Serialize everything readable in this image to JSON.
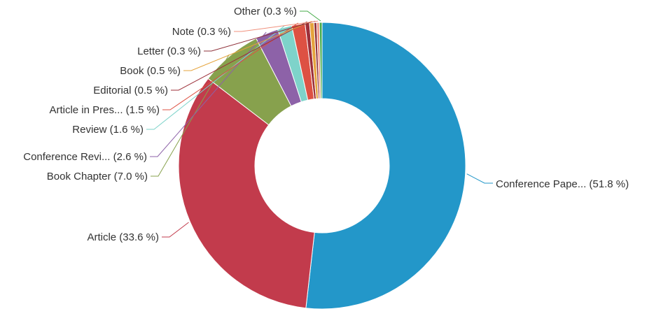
{
  "page": {
    "background": "#ffffff",
    "label_text_color": "#333333"
  },
  "chart_data": {
    "type": "pie",
    "subtype": "donut",
    "title": "",
    "xlabel": "",
    "ylabel": "",
    "legend_position": "none",
    "labels_style": "outside with colored leader lines",
    "start_angle_deg": -90,
    "direction": "clockwise",
    "inner_radius_ratio": 0.47,
    "total": 100.0,
    "categories": [
      "Conference Paper",
      "Article",
      "Book Chapter",
      "Conference Review",
      "Review",
      "Article in Press",
      "Editorial",
      "Book",
      "Letter",
      "Note",
      "Other"
    ],
    "values": [
      51.8,
      33.6,
      7.0,
      2.6,
      1.6,
      1.5,
      0.5,
      0.5,
      0.3,
      0.3,
      0.3
    ],
    "slices": [
      {
        "label": "Conference Paper",
        "display": "Conference Pape... (51.8 %)",
        "value": 51.8,
        "color": "#2397c9"
      },
      {
        "label": "Article",
        "display": "Article (33.6 %)",
        "value": 33.6,
        "color": "#c23b4c"
      },
      {
        "label": "Book Chapter",
        "display": "Book Chapter (7.0 %)",
        "value": 7.0,
        "color": "#87a14d"
      },
      {
        "label": "Conference Review",
        "display": "Conference Revi... (2.6 %)",
        "value": 2.6,
        "color": "#8d62a8"
      },
      {
        "label": "Review",
        "display": "Review (1.6 %)",
        "value": 1.6,
        "color": "#7ed3ca"
      },
      {
        "label": "Article in Press",
        "display": "Article in Pres... (1.5 %)",
        "value": 1.5,
        "color": "#dd5143"
      },
      {
        "label": "Editorial",
        "display": "Editorial (0.5 %)",
        "value": 0.5,
        "color": "#9c2f39"
      },
      {
        "label": "Book",
        "display": "Book (0.5 %)",
        "value": 0.5,
        "color": "#e5a33c"
      },
      {
        "label": "Letter",
        "display": "Letter (0.3 %)",
        "value": 0.3,
        "color": "#8e3039"
      },
      {
        "label": "Note",
        "display": "Note (0.3 %)",
        "value": 0.3,
        "color": "#f0907c"
      },
      {
        "label": "Other",
        "display": "Other (0.3 %)",
        "value": 0.3,
        "color": "#45ab49"
      }
    ]
  }
}
